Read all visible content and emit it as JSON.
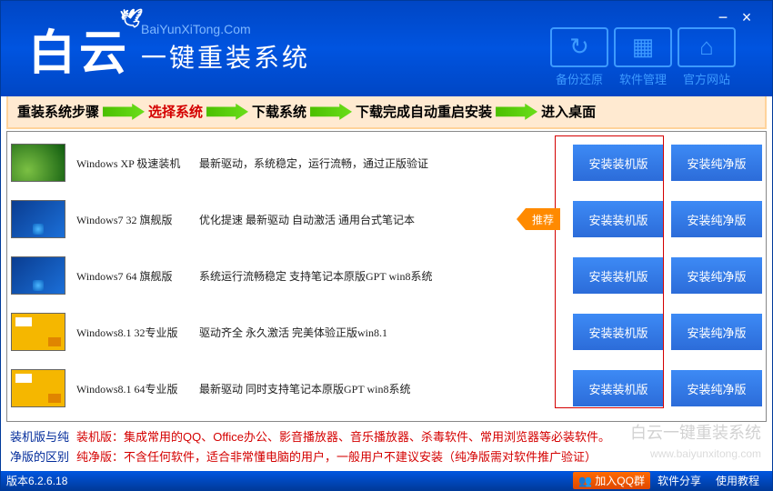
{
  "header": {
    "logo_zh": "白云",
    "url": "BaiYunXiTong.Com",
    "tagline": "一键重装系统",
    "nav": [
      {
        "label": "备份还原",
        "icon_name": "refresh-icon"
      },
      {
        "label": "软件管理",
        "icon_name": "grid-icon"
      },
      {
        "label": "官方网站",
        "icon_name": "home-icon"
      }
    ],
    "colors": {
      "bg": "#0046c4",
      "nav_border": "#3d9aff"
    }
  },
  "steps": {
    "items": [
      "重装系统步骤",
      "选择系统",
      "下载系统",
      "下载完成自动重启安装",
      "进入桌面"
    ],
    "active_index": 1,
    "arrow_color": "#4bbf00",
    "bg": "#ffead1"
  },
  "systems": [
    {
      "name": "Windows XP 极速装机",
      "desc": "最新驱动，系统稳定，运行流畅，通过正版验证",
      "thumb": "xp",
      "recommend": false
    },
    {
      "name": "Windows7 32 旗舰版",
      "desc": "优化提速 最新驱动 自动激活 通用台式笔记本",
      "thumb": "7",
      "recommend": true
    },
    {
      "name": "Windows7 64 旗舰版",
      "desc": "系统运行流畅稳定 支持笔记本原版GPT win8系统",
      "thumb": "7",
      "recommend": false
    },
    {
      "name": "Windows8.1 32专业版",
      "desc": "驱动齐全 永久激活 完美体验正版win8.1",
      "thumb": "8",
      "recommend": false
    },
    {
      "name": "Windows8.1 64专业版",
      "desc": "最新驱动 同时支持笔记本原版GPT win8系统",
      "thumb": "8",
      "recommend": false
    }
  ],
  "buttons": {
    "install_machine": "安装装机版",
    "install_pure": "安装纯净版",
    "recommend_label": "推荐",
    "btn_bg": "#2c6cd9"
  },
  "description": {
    "label1": "装机版与纯",
    "text1": "装机版：集成常用的QQ、Office办公、影音播放器、音乐播放器、杀毒软件、常用浏览器等必装软件。",
    "label2": "净版的区别",
    "text2": "纯净版：不含任何软件，适合非常懂电脑的用户，一般用户不建议安装（纯净版需对软件推广验证）"
  },
  "footer": {
    "version": "版本6.2.6.18",
    "qq_label": "加入QQ群",
    "links": [
      "软件分享",
      "使用教程"
    ]
  },
  "watermark": {
    "text": "白云一键重装系统",
    "url": "www.baiyunxitong.com"
  }
}
